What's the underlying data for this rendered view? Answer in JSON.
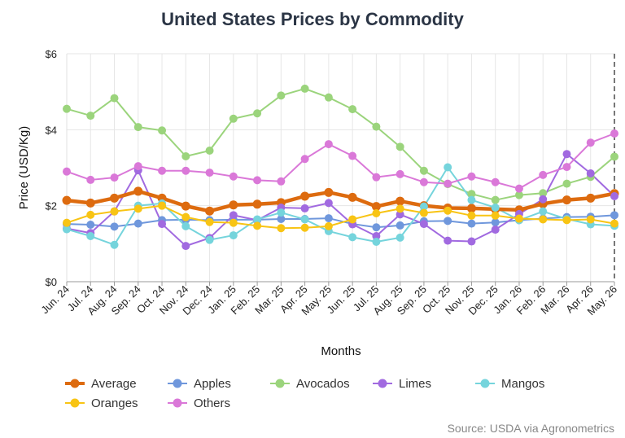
{
  "chart_data": {
    "type": "line",
    "title": "United States Prices by Commodity",
    "xlabel": "Months",
    "ylabel": "Price (USD/Kg)",
    "ylim": [
      0,
      6
    ],
    "yticks": [
      "$0",
      "$2",
      "$4",
      "$6"
    ],
    "yticks_values": [
      0,
      2,
      4,
      6
    ],
    "grid": true,
    "legend_position": "bottom",
    "source": "Source: USDA via Agronometrics",
    "categories": [
      "Jun. 24",
      "Jul. 24",
      "Aug. 24",
      "Sep. 24",
      "Oct. 24",
      "Nov. 24",
      "Dec. 24",
      "Jan. 25",
      "Feb. 25",
      "Mar. 25",
      "Apr. 25",
      "May. 25",
      "Jun. 25",
      "Jul. 25",
      "Aug. 25",
      "Sep. 25",
      "Oct. 25",
      "Nov. 25",
      "Dec. 25",
      "Jan. 26",
      "Feb. 26",
      "Mar. 26",
      "Apr. 26",
      "May. 26"
    ],
    "series": [
      {
        "name": "Average",
        "color": "#dd6b0f",
        "emphasis": true,
        "values": [
          2.14,
          2.07,
          2.2,
          2.38,
          2.2,
          1.99,
          1.86,
          2.02,
          2.04,
          2.08,
          2.25,
          2.35,
          2.22,
          1.98,
          2.12,
          2.0,
          1.94,
          1.93,
          1.91,
          1.89,
          2.05,
          2.15,
          2.2,
          2.32
        ]
      },
      {
        "name": "Apples",
        "color": "#6f97dc",
        "values": [
          1.52,
          1.5,
          1.45,
          1.53,
          1.62,
          1.63,
          1.62,
          1.63,
          1.63,
          1.65,
          1.65,
          1.67,
          1.52,
          1.43,
          1.48,
          1.59,
          1.6,
          1.53,
          1.56,
          1.62,
          1.66,
          1.7,
          1.71,
          1.75
        ]
      },
      {
        "name": "Avocados",
        "color": "#9bd47c",
        "values": [
          4.55,
          4.37,
          4.83,
          4.07,
          3.98,
          3.3,
          3.45,
          4.29,
          4.43,
          4.9,
          5.08,
          4.85,
          4.54,
          4.08,
          3.55,
          2.92,
          2.57,
          2.31,
          2.15,
          2.28,
          2.33,
          2.58,
          2.76,
          3.29
        ]
      },
      {
        "name": "Limes",
        "color": "#a16ae0",
        "values": [
          1.4,
          1.28,
          1.85,
          2.93,
          1.52,
          0.94,
          1.15,
          1.75,
          1.62,
          1.95,
          1.93,
          2.07,
          1.51,
          1.2,
          1.77,
          1.52,
          1.08,
          1.06,
          1.37,
          1.78,
          2.17,
          3.36,
          2.85,
          2.25
        ]
      },
      {
        "name": "Mangos",
        "color": "#75d4dc",
        "values": [
          1.38,
          1.2,
          0.97,
          2.0,
          2.06,
          1.46,
          1.1,
          1.22,
          1.64,
          1.82,
          1.64,
          1.33,
          1.17,
          1.05,
          1.16,
          1.98,
          3.01,
          2.15,
          1.95,
          1.62,
          1.85,
          1.65,
          1.51,
          1.47
        ]
      },
      {
        "name": "Oranges",
        "color": "#f8c414",
        "values": [
          1.55,
          1.76,
          1.85,
          1.92,
          2.0,
          1.7,
          1.57,
          1.55,
          1.47,
          1.41,
          1.42,
          1.46,
          1.64,
          1.8,
          1.92,
          1.81,
          1.87,
          1.74,
          1.74,
          1.66,
          1.64,
          1.62,
          1.64,
          1.53
        ]
      },
      {
        "name": "Others",
        "color": "#da78d8",
        "values": [
          2.9,
          2.68,
          2.74,
          3.04,
          2.92,
          2.92,
          2.87,
          2.77,
          2.67,
          2.64,
          3.23,
          3.62,
          3.31,
          2.75,
          2.83,
          2.62,
          2.58,
          2.77,
          2.62,
          2.45,
          2.81,
          3.02,
          3.66,
          3.9
        ]
      }
    ]
  }
}
